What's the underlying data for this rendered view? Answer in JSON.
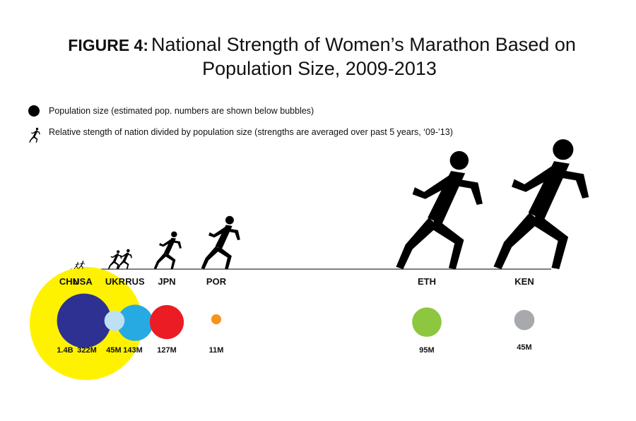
{
  "chart_data": {
    "type": "bubble-pictogram",
    "title": {
      "prefix": "FIGURE 4:",
      "line1": "National Strength of Women’s Marathon Based on",
      "line2": "Population Size, 2009-2013"
    },
    "legend": [
      {
        "symbol": "circle",
        "text": "Population size (estimated pop. numbers are shown below bubbles)"
      },
      {
        "symbol": "runner",
        "text": "Relative stength of nation divided by population size (strengths are averaged over past 5 years, ‘09-’13)"
      }
    ],
    "countries": [
      {
        "code": "CHN",
        "population_label": "1.4B",
        "population": 1400,
        "relative_strength": 0.06,
        "color": "#fff200"
      },
      {
        "code": "USA",
        "population_label": "322M",
        "population": 322,
        "relative_strength": 0.07,
        "color": "#2e3192"
      },
      {
        "code": "UKR",
        "population_label": "45M",
        "population": 45,
        "relative_strength": 0.16,
        "color": "#bde0f5"
      },
      {
        "code": "RUS",
        "population_label": "143M",
        "population": 143,
        "relative_strength": 0.17,
        "color": "#27aae1"
      },
      {
        "code": "JPN",
        "population_label": "127M",
        "population": 127,
        "relative_strength": 0.32,
        "color": "#ec1c24"
      },
      {
        "code": "POR",
        "population_label": "11M",
        "population": 11,
        "relative_strength": 0.45,
        "color": "#f7941d"
      },
      {
        "code": "ETH",
        "population_label": "95M",
        "population": 95,
        "relative_strength": 1.0,
        "color": "#8dc63f"
      },
      {
        "code": "KEN",
        "population_label": "45M",
        "population": 45,
        "relative_strength": 1.1,
        "color": "#a7a9ac"
      }
    ],
    "units": {
      "billion": "B",
      "million": "M"
    }
  }
}
